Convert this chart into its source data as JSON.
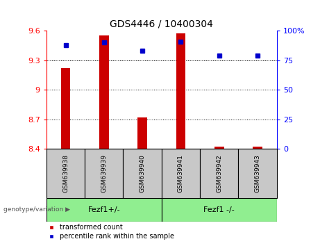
{
  "title": "GDS4446 / 10400304",
  "samples": [
    "GSM639938",
    "GSM639939",
    "GSM639940",
    "GSM639941",
    "GSM639942",
    "GSM639943"
  ],
  "bar_values": [
    9.22,
    9.55,
    8.72,
    9.57,
    8.42,
    8.42
  ],
  "percentile_values": [
    88,
    90,
    83,
    91,
    79,
    79
  ],
  "ylim_left": [
    8.4,
    9.6
  ],
  "ylim_right": [
    0,
    100
  ],
  "yticks_left": [
    8.4,
    8.7,
    9.0,
    9.3,
    9.6
  ],
  "yticks_right": [
    0,
    25,
    50,
    75,
    100
  ],
  "ytick_labels_left": [
    "8.4",
    "8.7",
    "9",
    "9.3",
    "9.6"
  ],
  "ytick_labels_right": [
    "0",
    "25",
    "50",
    "75",
    "100%"
  ],
  "bar_color": "#CC0000",
  "dot_color": "#0000CC",
  "group1_label": "Fezf1+/-",
  "group2_label": "Fezf1 -/-",
  "group1_indices": [
    0,
    1,
    2
  ],
  "group2_indices": [
    3,
    4,
    5
  ],
  "group_bg_color": "#90EE90",
  "sample_bg_color": "#C8C8C8",
  "legend_bar_label": "transformed count",
  "legend_dot_label": "percentile rank within the sample",
  "genotype_label": "genotype/variation"
}
